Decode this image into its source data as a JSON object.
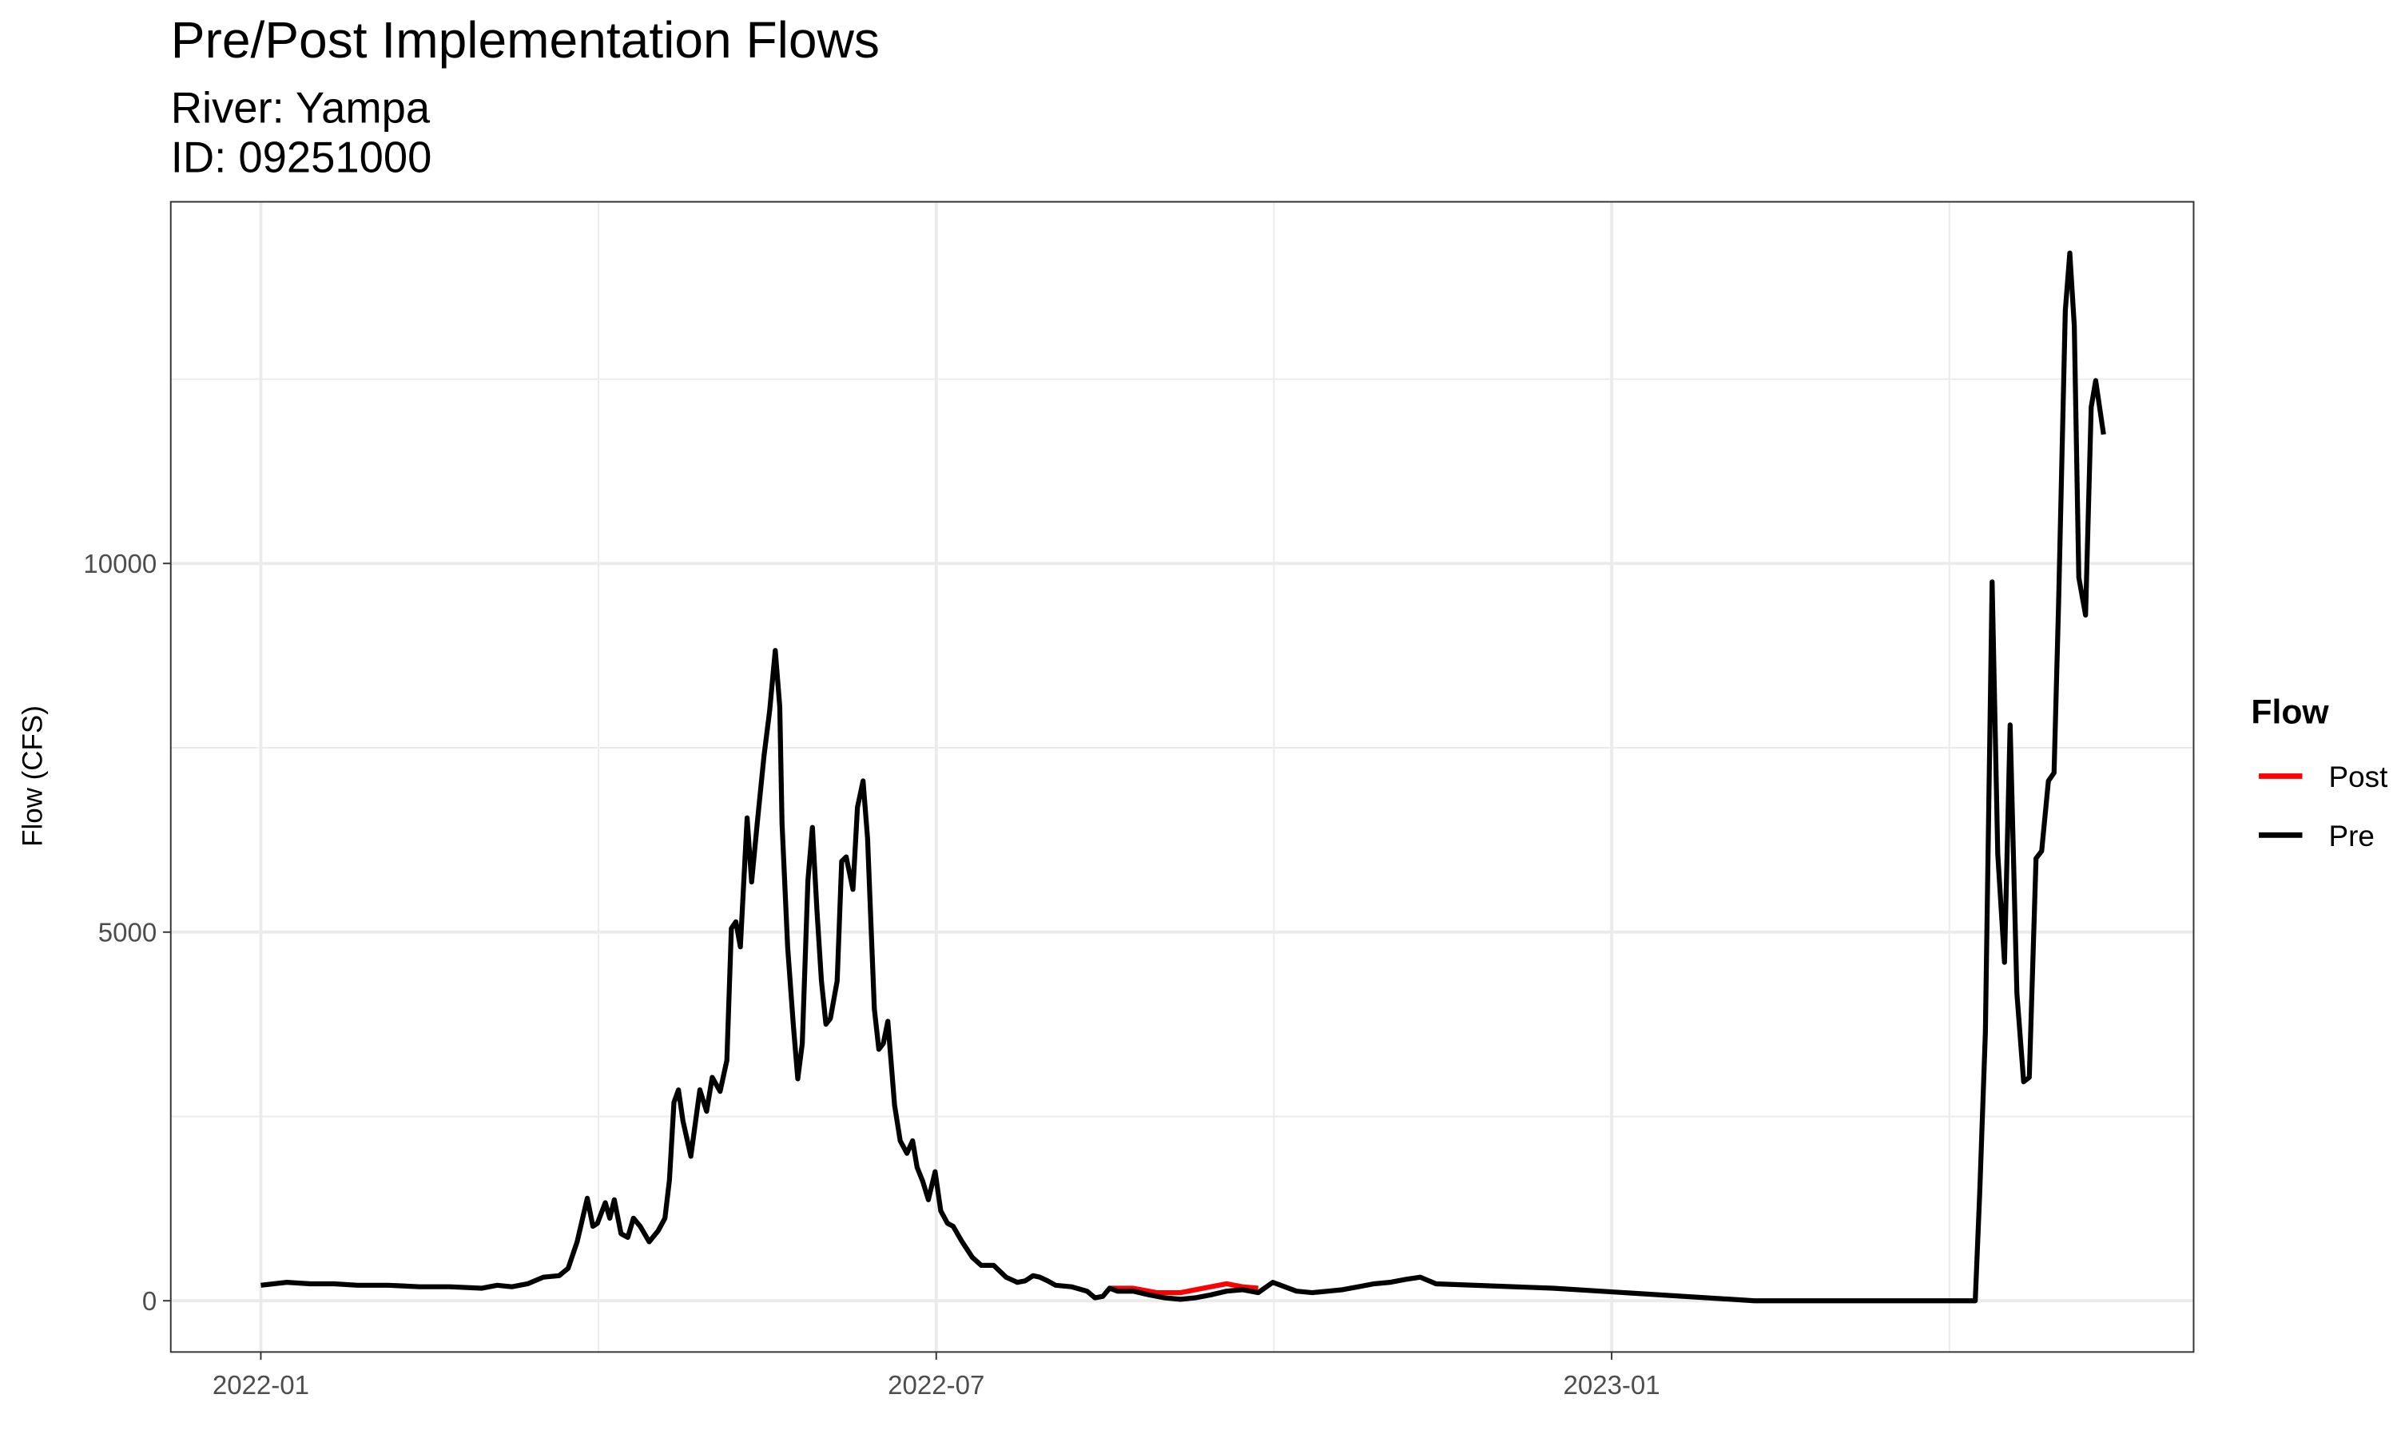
{
  "chart_data": {
    "type": "line",
    "title": "Pre/Post Implementation Flows",
    "subtitle": [
      "River: Yampa",
      "ID: 09251000"
    ],
    "y_label": "Flow (CFS)",
    "legend_title": "Flow",
    "legend_position": "right",
    "grid": true,
    "xlim": [
      -0.8,
      17.17
    ],
    "xticks": [
      {
        "value": 0,
        "label": "2022-01"
      },
      {
        "value": 6,
        "label": "2022-07"
      },
      {
        "value": 12,
        "label": "2023-01"
      }
    ],
    "x_minor_grid": [
      3,
      9,
      15
    ],
    "ylim": [
      -695,
      14905
    ],
    "yticks": [
      0,
      5000,
      10000
    ],
    "y_minor_grid": [
      2500,
      7500,
      12500
    ],
    "series": [
      {
        "name": "Post",
        "color": "#ff0000",
        "x": [
          7.54,
          7.75,
          7.96,
          8.17,
          8.37,
          8.58,
          8.72,
          8.86
        ],
        "values": [
          170,
          170,
          110,
          110,
          170,
          230,
          190,
          170
        ]
      },
      {
        "name": "Pre",
        "color": "#000000",
        "x": [
          0.0,
          0.23,
          0.44,
          0.65,
          0.86,
          1.13,
          1.41,
          1.68,
          1.96,
          2.1,
          2.23,
          2.37,
          2.51,
          2.65,
          2.73,
          2.81,
          2.9,
          2.95,
          2.99,
          3.06,
          3.1,
          3.14,
          3.2,
          3.26,
          3.31,
          3.37,
          3.45,
          3.53,
          3.59,
          3.63,
          3.67,
          3.71,
          3.75,
          3.82,
          3.9,
          3.96,
          4.01,
          4.08,
          4.14,
          4.18,
          4.22,
          4.26,
          4.32,
          4.36,
          4.41,
          4.47,
          4.52,
          4.57,
          4.61,
          4.63,
          4.68,
          4.73,
          4.77,
          4.81,
          4.86,
          4.9,
          4.94,
          4.98,
          5.02,
          5.06,
          5.12,
          5.16,
          5.2,
          5.26,
          5.3,
          5.35,
          5.39,
          5.45,
          5.49,
          5.53,
          5.57,
          5.63,
          5.68,
          5.74,
          5.79,
          5.83,
          5.88,
          5.93,
          5.99,
          6.04,
          6.1,
          6.15,
          6.23,
          6.32,
          6.4,
          6.51,
          6.62,
          6.72,
          6.79,
          6.86,
          6.92,
          6.99,
          7.06,
          7.2,
          7.34,
          7.41,
          7.48,
          7.54,
          7.61,
          7.75,
          7.89,
          8.03,
          8.17,
          8.3,
          8.44,
          8.58,
          8.72,
          8.86,
          8.99,
          9.06,
          9.2,
          9.34,
          9.48,
          9.61,
          9.75,
          9.89,
          10.03,
          10.17,
          10.3,
          10.44,
          11.48,
          13.27,
          15.23,
          15.27,
          15.32,
          15.38,
          15.43,
          15.49,
          15.54,
          15.6,
          15.66,
          15.71,
          15.77,
          15.82,
          15.88,
          15.93,
          15.97,
          16.03,
          16.07,
          16.11,
          16.15,
          16.21,
          16.26,
          16.3,
          16.37
        ],
        "values": [
          210,
          250,
          230,
          230,
          210,
          210,
          190,
          190,
          170,
          210,
          190,
          230,
          320,
          340,
          440,
          800,
          1390,
          1010,
          1050,
          1330,
          1120,
          1370,
          910,
          860,
          1120,
          1010,
          800,
          950,
          1120,
          1640,
          2690,
          2860,
          2440,
          1960,
          2860,
          2570,
          3030,
          2840,
          3260,
          5050,
          5140,
          4800,
          6550,
          5680,
          6480,
          7390,
          8000,
          8820,
          8060,
          6480,
          4800,
          3750,
          3010,
          3490,
          5700,
          6420,
          5300,
          4340,
          3750,
          3830,
          4340,
          5960,
          6020,
          5580,
          6690,
          7050,
          6270,
          3960,
          3410,
          3490,
          3790,
          2650,
          2170,
          2000,
          2170,
          1810,
          1620,
          1370,
          1750,
          1220,
          1050,
          1010,
          800,
          590,
          480,
          480,
          320,
          250,
          270,
          340,
          320,
          270,
          210,
          190,
          130,
          40,
          60,
          170,
          130,
          130,
          80,
          40,
          20,
          40,
          80,
          130,
          150,
          110,
          250,
          210,
          130,
          110,
          130,
          150,
          190,
          230,
          250,
          290,
          320,
          230,
          170,
          0,
          0,
          1470,
          3640,
          9750,
          6060,
          4590,
          7810,
          4170,
          2970,
          3030,
          6000,
          6100,
          7050,
          7160,
          9430,
          13430,
          14210,
          13220,
          9810,
          9300,
          12120,
          12480,
          11750
        ]
      }
    ]
  }
}
